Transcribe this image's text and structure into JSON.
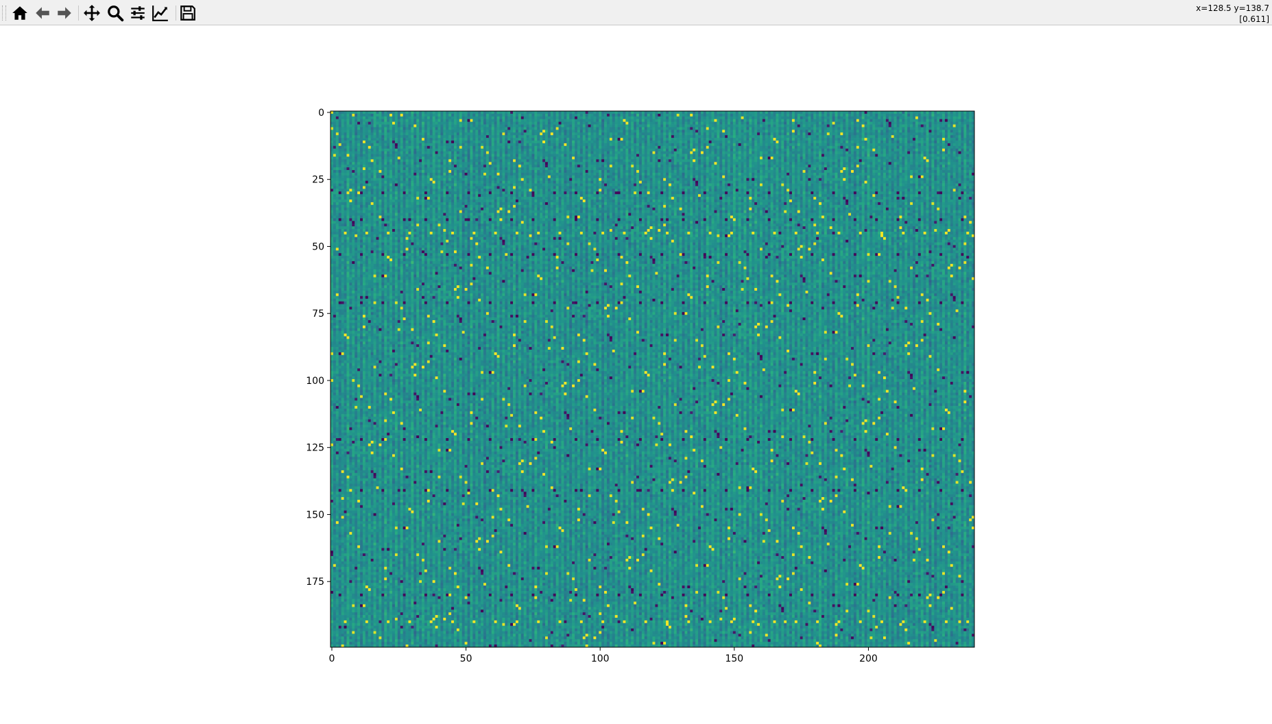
{
  "toolbar": {
    "items": [
      {
        "name": "home-button",
        "icon": "home-icon",
        "tooltip": "Reset original view"
      },
      {
        "name": "back-button",
        "icon": "arrow-left-icon",
        "tooltip": "Back to previous view"
      },
      {
        "name": "forward-button",
        "icon": "arrow-right-icon",
        "tooltip": "Forward to next view"
      },
      {
        "name": "pan-button",
        "icon": "move-icon",
        "tooltip": "Pan axes"
      },
      {
        "name": "zoom-button",
        "icon": "magnifier-icon",
        "tooltip": "Zoom to rectangle"
      },
      {
        "name": "subplots-button",
        "icon": "sliders-icon",
        "tooltip": "Configure subplots"
      },
      {
        "name": "edit-axes-button",
        "icon": "chart-line-icon",
        "tooltip": "Edit axis, curve and image parameters"
      },
      {
        "name": "save-button",
        "icon": "floppy-disk-icon",
        "tooltip": "Save the figure"
      }
    ],
    "coords_line1": "x=128.5 y=138.7",
    "coords_line2": "[0.611]"
  },
  "chart_data": {
    "type": "heatmap",
    "colormap": "viridis",
    "colors": {
      "low": "#440154",
      "mid_low": "#31688e",
      "mid": "#21918c",
      "mid_high": "#35b779",
      "high": "#fde725"
    },
    "n_cols": 240,
    "n_rows": 200,
    "x_range": [
      -0.5,
      239.5
    ],
    "y_range": [
      199.5,
      -0.5
    ],
    "y_inverted": true,
    "x_ticks": [
      0,
      50,
      100,
      150,
      200
    ],
    "x_tick_labels": [
      "0",
      "50",
      "100",
      "150",
      "200"
    ],
    "y_ticks": [
      0,
      25,
      50,
      75,
      100,
      125,
      150,
      175
    ],
    "y_tick_labels": [
      "0",
      "25",
      "50",
      "75",
      "100",
      "125",
      "150",
      "175"
    ],
    "value_range": [
      0,
      1
    ],
    "dominant_value": 0.5,
    "column_stripe_period": 2,
    "notable_rows": {
      "dark_rows": [
        30,
        40,
        53,
        71,
        122,
        141,
        180
      ],
      "bright_rows": [
        45,
        190
      ]
    },
    "title": "",
    "xlabel": "",
    "ylabel": "",
    "grid": false,
    "legend": "none"
  }
}
